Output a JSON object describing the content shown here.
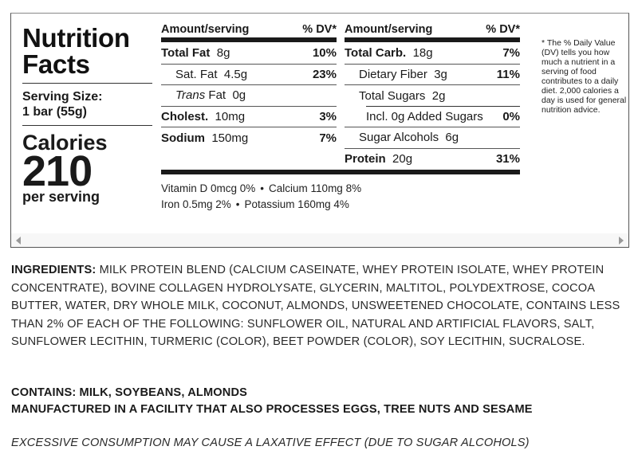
{
  "label": {
    "title_line1": "Nutrition",
    "title_line2": "Facts",
    "serving_label": "Serving Size:",
    "serving_value": "1 bar (55g)",
    "calories_label": "Calories",
    "calories_value": "210",
    "calories_per": "per serving"
  },
  "columns": [
    {
      "header_amount": "Amount/serving",
      "header_dv": "% DV*",
      "rows": [
        {
          "name": "Total Fat",
          "amount": "8g",
          "dv": "10%"
        },
        {
          "name": "Sat. Fat",
          "amount": "4.5g",
          "dv": "23%"
        },
        {
          "name_italic": "Trans",
          "name": "Fat",
          "amount": "0g",
          "dv": ""
        },
        {
          "name": "Cholest.",
          "amount": "10mg",
          "dv": "3%"
        },
        {
          "name": "Sodium",
          "amount": "150mg",
          "dv": "7%"
        }
      ]
    },
    {
      "header_amount": "Amount/serving",
      "header_dv": "% DV*",
      "rows": [
        {
          "name": "Total Carb.",
          "amount": "18g",
          "dv": "7%"
        },
        {
          "name": "Dietary Fiber",
          "amount": "3g",
          "dv": "11%"
        },
        {
          "name": "Total Sugars",
          "amount": "2g",
          "dv": ""
        },
        {
          "name": "Incl. 0g Added Sugars",
          "amount": "",
          "dv": "0%"
        },
        {
          "name": "Sugar Alcohols",
          "amount": "6g",
          "dv": ""
        },
        {
          "name": "Protein",
          "amount": "20g",
          "dv": "31%"
        }
      ]
    }
  ],
  "vitamins": {
    "line1_a": "Vitamin D 0mcg 0%",
    "line1_b": "Calcium 110mg 8%",
    "line2_a": "Iron 0.5mg 2%",
    "line2_b": "Potassium 160mg 4%",
    "separator": "•"
  },
  "footnote": "* The % Daily Value (DV) tells you how much a nutrient in a serving of food contributes to a daily diet. 2,000 calories a day is used for general nutrition advice.",
  "scrollbar": {
    "left_icon": "arrow-left-icon",
    "right_icon": "arrow-right-icon"
  },
  "ingredients": {
    "label": "INGREDIENTS:",
    "text": "MILK PROTEIN BLEND (CALCIUM CASEINATE, WHEY PROTEIN ISOLATE, WHEY PROTEIN CONCENTRATE), BOVINE COLLAGEN HYDROLYSATE, GLYCERIN, MALTITOL, POLYDEXTROSE, COCOA BUTTER, WATER, DRY WHOLE MILK, COCONUT, ALMONDS, UNSWEETENED CHOCOLATE, CONTAINS LESS THAN 2% OF EACH OF THE FOLLOWING: SUNFLOWER OIL, NATURAL AND ARTIFICIAL FLAVORS, SALT, SUNFLOWER LECITHIN, TURMERIC (COLOR), BEET POWDER (COLOR), SOY LECITHIN, SUCRALOSE."
  },
  "allergens": {
    "contains": "CONTAINS: MILK, SOYBEANS, ALMONDS",
    "facility": "MANUFACTURED IN A FACILITY THAT ALSO PROCESSES EGGS, TREE NUTS AND SESAME"
  },
  "warning": "EXCESSIVE CONSUMPTION MAY CAUSE A LAXATIVE EFFECT (DUE TO SUGAR ALCOHOLS)"
}
